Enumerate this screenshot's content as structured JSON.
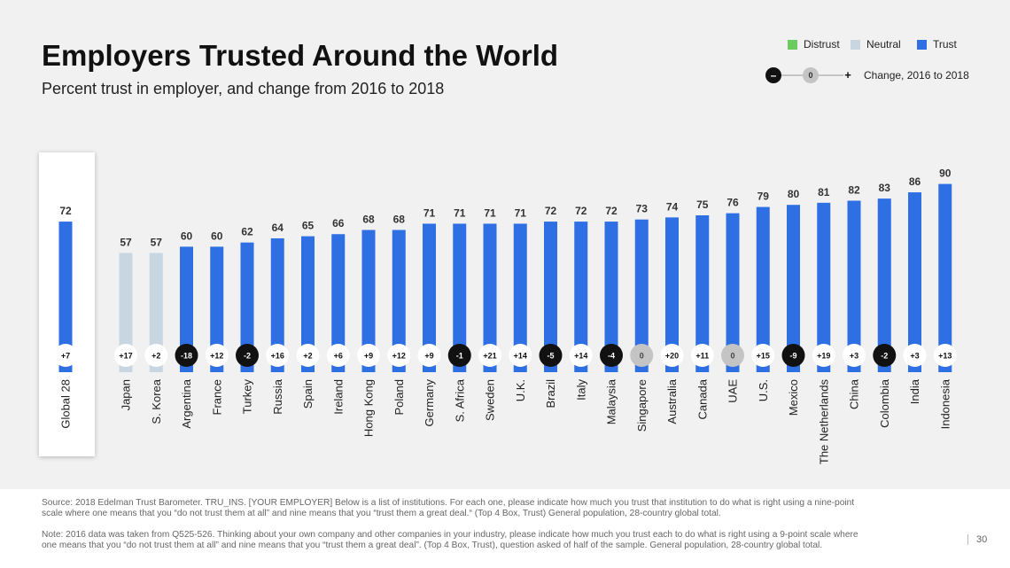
{
  "title": "Employers Trusted Around the World",
  "subtitle": "Percent trust in employer, and change from 2016 to 2018",
  "legend": {
    "distrust": "Distrust",
    "neutral": "Neutral",
    "trust": "Trust",
    "change_minus": "–",
    "change_zero": "0",
    "change_plus": "+",
    "change_label": "Change, 2016 to 2018"
  },
  "colors": {
    "distrust": "#6ccb5f",
    "neutral": "#c7d6e0",
    "trust": "#2f6fe4",
    "negative_change": "#111111",
    "zero_change": "#c4c4c4",
    "positive_change": "#ffffff"
  },
  "chart_data": {
    "type": "bar",
    "categories": [
      "Global 28",
      "Japan",
      "S. Korea",
      "Argentina",
      "France",
      "Turkey",
      "Russia",
      "Spain",
      "Ireland",
      "Hong Kong",
      "Poland",
      "Germany",
      "S. Africa",
      "Sweden",
      "U.K.",
      "Brazil",
      "Italy",
      "Malaysia",
      "Singapore",
      "Australia",
      "Canada",
      "UAE",
      "U.S.",
      "Mexico",
      "The Netherlands",
      "China",
      "Colombia",
      "India",
      "Indonesia"
    ],
    "values": [
      72,
      57,
      57,
      60,
      60,
      62,
      64,
      65,
      66,
      68,
      68,
      71,
      71,
      71,
      71,
      72,
      72,
      72,
      73,
      74,
      75,
      76,
      79,
      80,
      81,
      82,
      83,
      86,
      90
    ],
    "category_level": [
      "Trust",
      "Neutral",
      "Neutral",
      "Trust",
      "Trust",
      "Trust",
      "Trust",
      "Trust",
      "Trust",
      "Trust",
      "Trust",
      "Trust",
      "Trust",
      "Trust",
      "Trust",
      "Trust",
      "Trust",
      "Trust",
      "Trust",
      "Trust",
      "Trust",
      "Trust",
      "Trust",
      "Trust",
      "Trust",
      "Trust",
      "Trust",
      "Trust",
      "Trust"
    ],
    "change": [
      "+7",
      "+17",
      "+2",
      "-18",
      "+12",
      "-2",
      "+16",
      "+2",
      "+6",
      "+9",
      "+12",
      "+9",
      "-1",
      "+21",
      "+14",
      "-5",
      "+14",
      "-4",
      "0",
      "+20",
      "+11",
      "0",
      "+15",
      "-9",
      "+19",
      "+3",
      "-2",
      "+3",
      "+13"
    ],
    "ylim": [
      0,
      100
    ]
  },
  "footer": {
    "source": "Source: 2018 Edelman Trust Barometer. TRU_INS. [YOUR EMPLOYER] Below is a list of institutions. For each one, please indicate how much you trust that institution to do what is right using a nine-point scale where one means that you “do not trust them at all” and nine means that you “trust them a great deal.“ (Top 4 Box, Trust) General population, 28-country global total.",
    "note": "Note: 2016 data was taken from Q525-526. Thinking about your own company and other companies in your industry, please indicate how much you trust each to do what is right using a 9-point scale where one means that you “do not trust them at all” and nine means that you “trust them a great deal”. (Top 4 Box, Trust), question asked of half of the sample. General population, 28-country global total.",
    "page": "30"
  }
}
